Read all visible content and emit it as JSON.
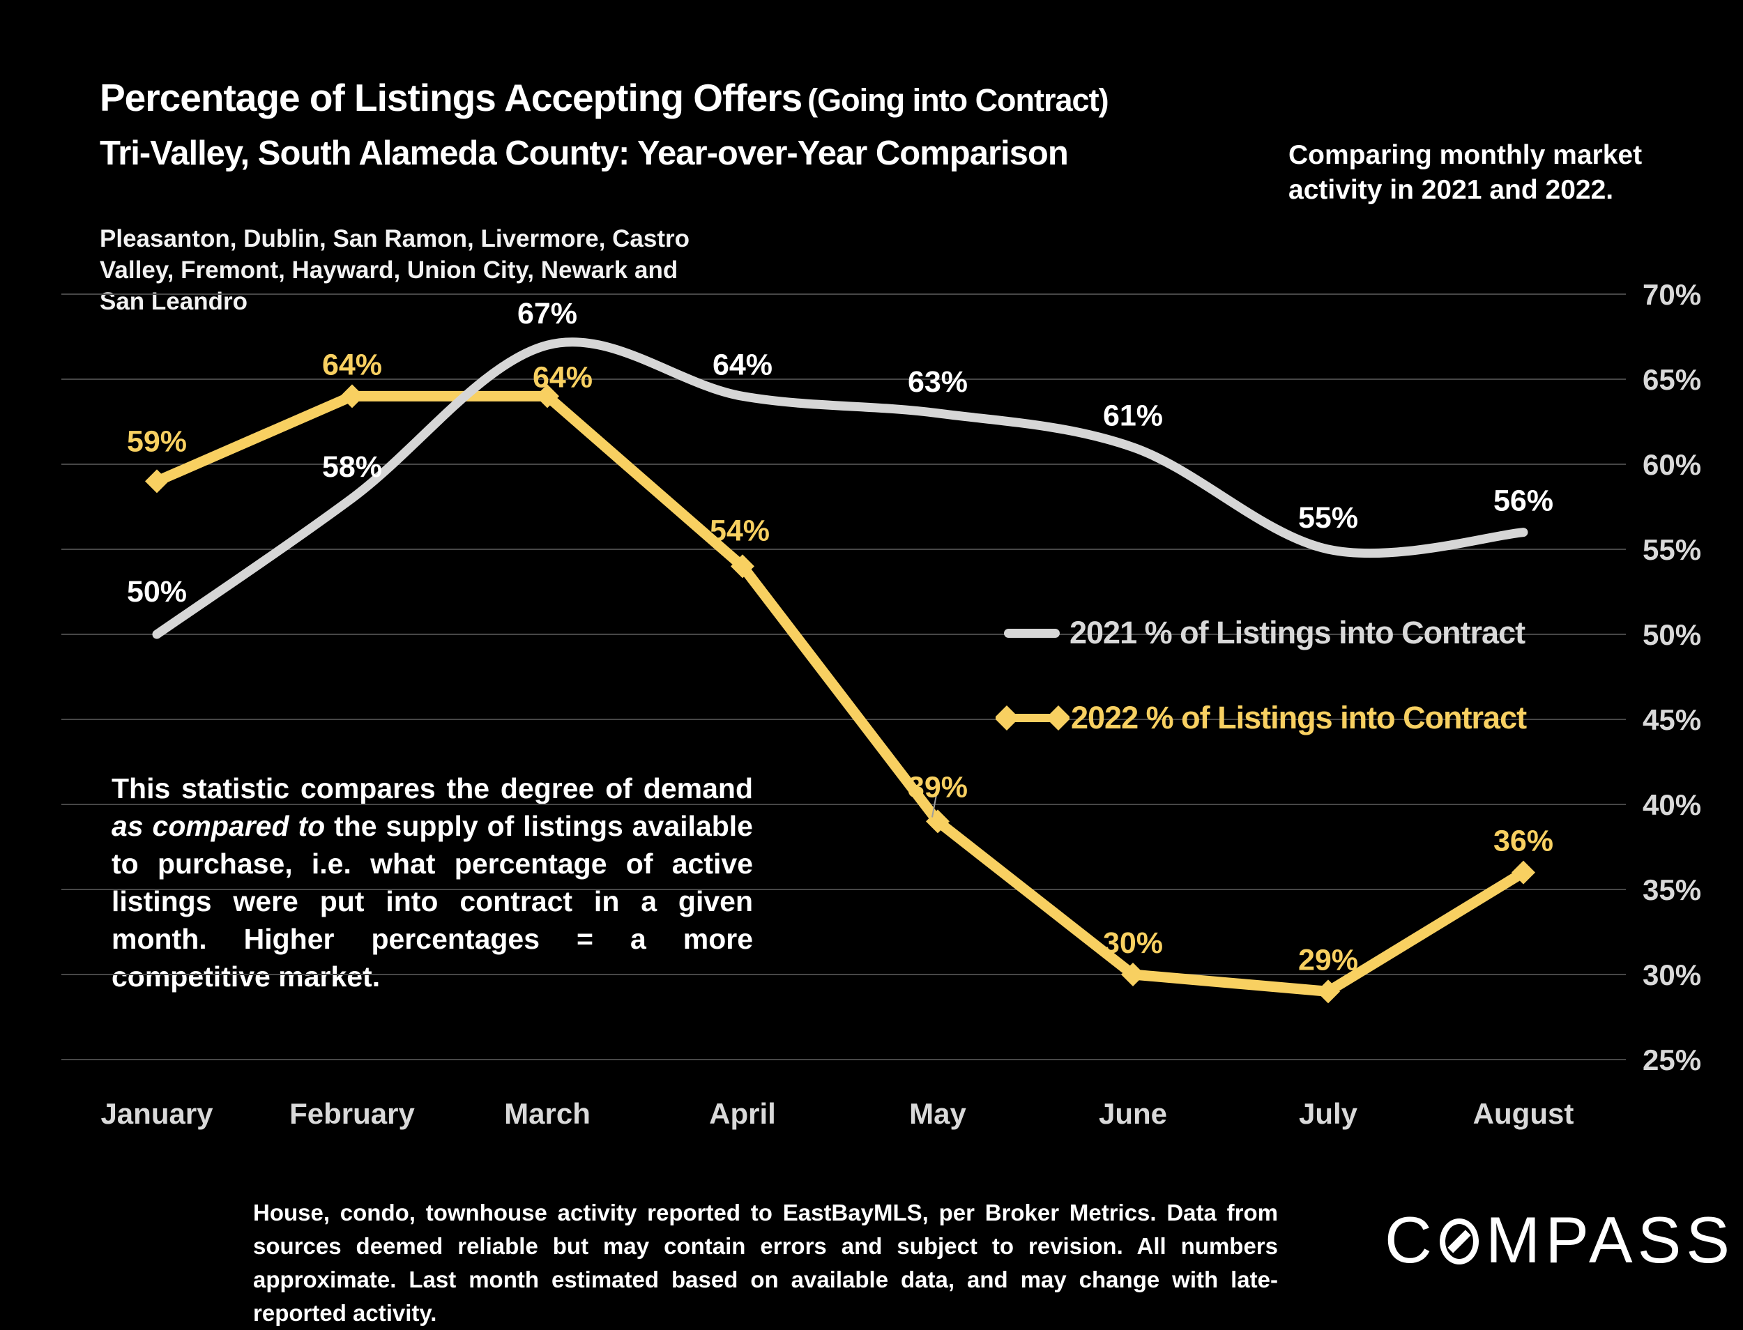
{
  "slide": {
    "title_main": "Percentage of Listings Accepting Offers",
    "title_paren": "(Going into Contract)",
    "title_line2": "Tri-Valley, South Alameda County: Year-over-Year Comparison",
    "activity_note": "Comparing monthly market activity in 2021 and 2022.",
    "region_note": "Pleasanton, Dublin, San Ramon, Livermore, Castro Valley, Fremont, Hayward, Union City, Newark and San Leandro",
    "description": {
      "before_italic": "This statistic compares the degree of demand ",
      "italic": "as compared to",
      "after_italic": " the supply of listings available to purchase, i.e. what percentage of active listings were put into contract in a given month. Higher percentages = a more competitive market."
    },
    "footer_disclaimer": "House, condo, townhouse activity reported to EastBayMLS, per Broker Metrics. Data from sources deemed reliable but may contain errors and subject to revision. All numbers approximate. Last month estimated based on available data, and may change with late-reported activity.",
    "logo_text": "COMPASS"
  },
  "chart_data": {
    "type": "line",
    "title": "Percentage of Listings Accepting Offers (Going into Contract) — Tri-Valley, South Alameda County: Year-over-Year Comparison",
    "categories": [
      "January",
      "February",
      "March",
      "April",
      "May",
      "June",
      "July",
      "August"
    ],
    "series": [
      {
        "name": "2021 % of Listings into Contract",
        "values": [
          50,
          58,
          67,
          64,
          63,
          61,
          55,
          56
        ],
        "color": "#D6D6D6",
        "label_color": "#FFFFFF",
        "smooth": true,
        "marker": "none"
      },
      {
        "name": "2022 % of Listings into Contract",
        "values": [
          59,
          64,
          64,
          54,
          39,
          30,
          29,
          36
        ],
        "color": "#F8D061",
        "label_color": "#F8D061",
        "smooth": false,
        "marker": "diamond"
      }
    ],
    "ylim": [
      25,
      70
    ],
    "yticks": [
      70,
      65,
      60,
      55,
      50,
      45,
      40,
      35,
      30,
      25
    ],
    "ytick_suffix": "%",
    "data_label_suffix": "%",
    "grid": true,
    "grid_color": "#474747",
    "axis_text_color": "#D9D9D9",
    "background_color": "#000000",
    "legend_position": "middle-right"
  }
}
